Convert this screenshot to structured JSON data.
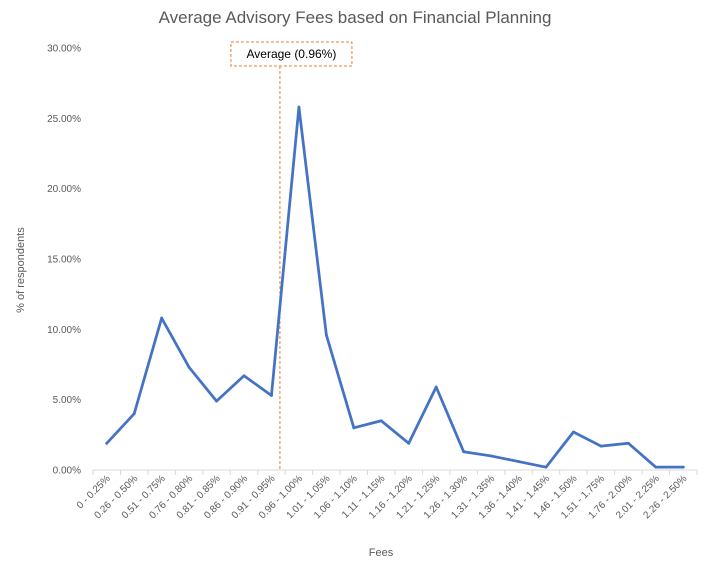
{
  "chart_data": {
    "type": "line",
    "title": "Average Advisory Fees based on Financial Planning",
    "xlabel": "Fees",
    "ylabel": "% of respondents",
    "ylim": [
      0,
      30
    ],
    "y_ticks": [
      "0.00%",
      "5.00%",
      "10.00%",
      "15.00%",
      "20.00%",
      "25.00%",
      "30.00%"
    ],
    "grid": false,
    "categories": [
      "0 - 0.25%",
      "0.26 - 0.50%",
      "0.51 - 0.75%",
      "0.76 - 0.80%",
      "0.81 - 0.85%",
      "0.86 - 0.90%",
      "0.91 - 0.95%",
      "0.96 - 1.00%",
      "1.01 - 1.05%",
      "1.06 - 1.10%",
      "1.11 - 1.15%",
      "1.16 - 1.20%",
      "1.21 - 1.25%",
      "1.26 - 1.30%",
      "1.31 - 1.35%",
      "1.36 - 1.40%",
      "1.41 - 1.45%",
      "1.46 - 1.50%",
      "1.51 - 1.75%",
      "1.76 - 2.00%",
      "2.01 - 2.25%",
      "2.26 - 2.50%"
    ],
    "series": [
      {
        "color": "#4472C4",
        "values": [
          1.9,
          4.0,
          10.8,
          7.3,
          4.9,
          6.7,
          5.3,
          25.8,
          9.6,
          3.0,
          3.5,
          1.9,
          5.9,
          1.3,
          1.0,
          0.6,
          0.2,
          2.7,
          1.7,
          1.9,
          0.2,
          0.2
        ]
      }
    ],
    "annotation": {
      "label": "Average (0.96%)",
      "x_value": 0.96,
      "color": "#ED7D31"
    }
  }
}
